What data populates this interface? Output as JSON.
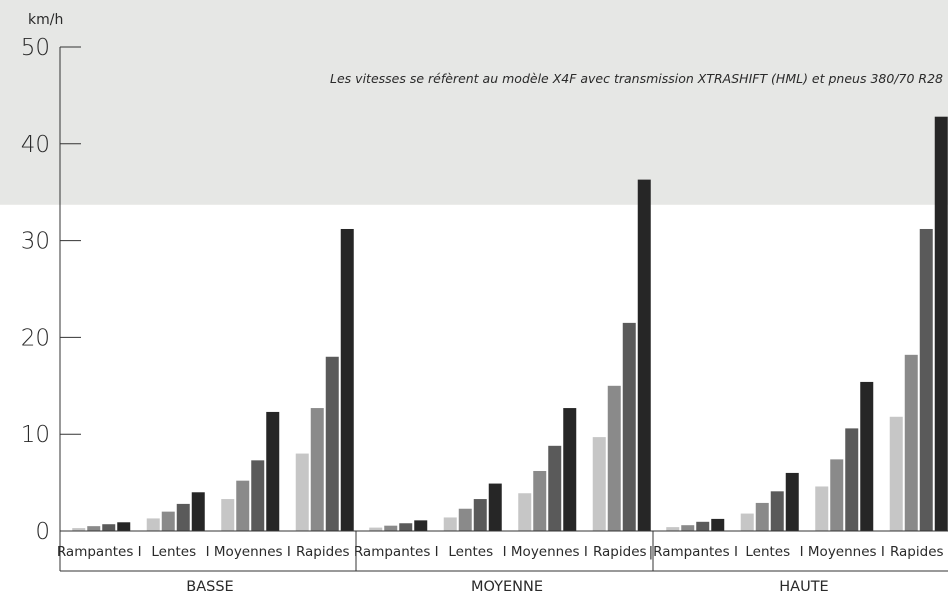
{
  "chart_data": {
    "type": "bar",
    "ylabel": "km/h",
    "ylim": [
      0,
      50
    ],
    "yticks": [
      0,
      10,
      20,
      30,
      40,
      50
    ],
    "annotation": "Les vitesses se réfèrent au modèle X4F avec transmission XTRASHIFT (HML) et pneus 380/70 R28",
    "groups": [
      "BASSE",
      "MOYENNE",
      "HAUTE"
    ],
    "categories": [
      "Rampantes",
      "Lentes",
      "Moyennes",
      "Rapides"
    ],
    "category_labels": [
      "Rampantes I",
      "Lentes",
      "I Moyennes I",
      "Rapides",
      "Rampantes I",
      "Lentes",
      "I Moyennes I",
      "Rapides",
      "|Rampantes I",
      "Lentes",
      "I Moyennes I",
      "Rapides"
    ],
    "bar_colors": [
      "#c6c6c6",
      "#8a8a8a",
      "#5a5a5a",
      "#262626"
    ],
    "band": {
      "y_from": 33.7,
      "y_to": 50,
      "color": "#e6e7e5"
    },
    "values": [
      [
        [
          0.3,
          0.5,
          0.7,
          0.9
        ],
        [
          1.3,
          2.0,
          2.8,
          4.0
        ],
        [
          3.3,
          5.2,
          7.3,
          12.3
        ],
        [
          8.0,
          12.7,
          18.0,
          31.2
        ]
      ],
      [
        [
          0.35,
          0.55,
          0.8,
          1.1
        ],
        [
          1.4,
          2.3,
          3.3,
          4.9
        ],
        [
          3.9,
          6.2,
          8.8,
          12.7
        ],
        [
          9.7,
          15.0,
          21.5,
          36.3
        ]
      ],
      [
        [
          0.4,
          0.6,
          0.95,
          1.25
        ],
        [
          1.8,
          2.9,
          4.1,
          6.0
        ],
        [
          4.6,
          7.4,
          10.6,
          15.4
        ],
        [
          11.8,
          18.2,
          31.2,
          42.8
        ]
      ]
    ]
  }
}
